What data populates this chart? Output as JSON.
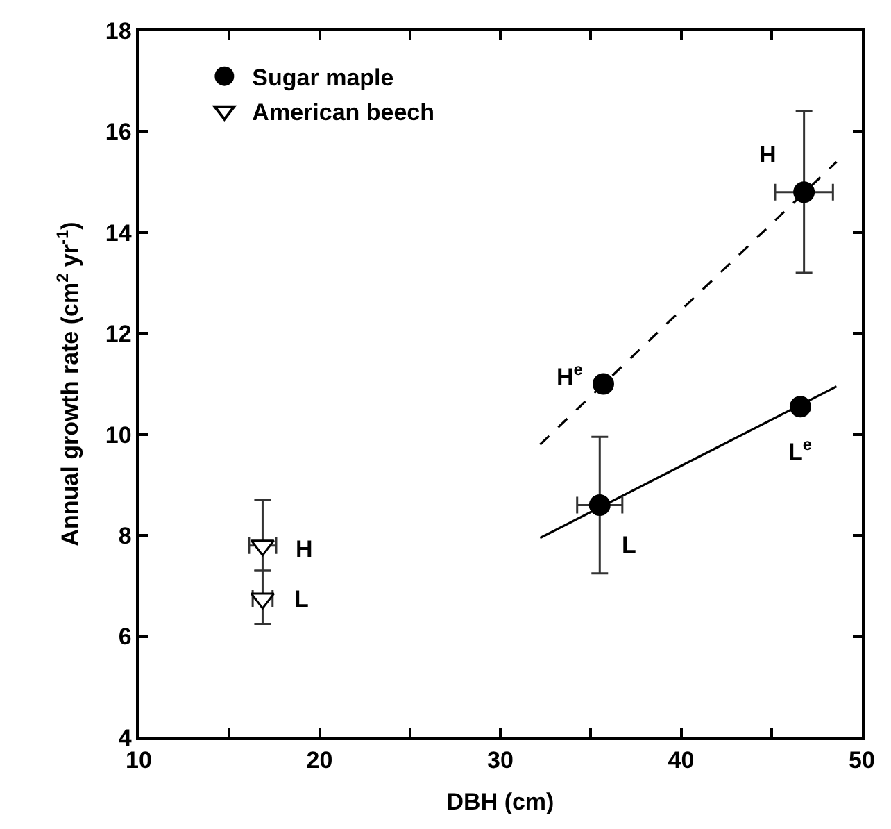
{
  "chart_data": {
    "type": "scatter",
    "xlabel": "DBH (cm)",
    "ylabel": "Annual growth rate (cm$^{2}$ yr$^{-1}$)",
    "xlim": [
      10,
      50
    ],
    "ylim": [
      4,
      18
    ],
    "xticks": [
      10,
      {
        "value": 15,
        "label": null
      },
      20,
      {
        "value": 25,
        "label": null
      },
      30,
      {
        "value": 35,
        "label": null
      },
      40,
      {
        "value": 45,
        "label": null
      },
      50
    ],
    "yticks": [
      4,
      6,
      8,
      10,
      12,
      14,
      16,
      18
    ],
    "legend": "top left",
    "series": [
      {
        "name": "Sugar maple",
        "marker": "circle",
        "color": "#000000",
        "x": [
          46.8,
          35.5,
          35.7,
          46.6
        ],
        "values": [
          14.8,
          8.6,
          11.0,
          10.55
        ],
        "errors": [
          [
            13.2,
            16.4
          ],
          [
            7.25,
            9.95
          ],
          null,
          null
        ],
        "xerrors": [
          1.6,
          1.25,
          null,
          null
        ]
      },
      {
        "name": "American beech",
        "marker": "triangle",
        "color": "#ffffff",
        "x": [
          16.85,
          16.85
        ],
        "values": [
          7.8,
          6.75
        ],
        "errors": [
          [
            7.3,
            8.7
          ],
          [
            6.25,
            7.3
          ]
        ],
        "xerrors": [
          0.75,
          0.55
        ]
      },
      {
        "type": "line",
        "line_style": "dashed",
        "color": "#000000",
        "x": [
          32.2,
          48.6
        ],
        "values": [
          9.8,
          15.4
        ]
      },
      {
        "type": "line",
        "line_style": "solid",
        "color": "#000000",
        "x": [
          32.2,
          48.6
        ],
        "values": [
          7.95,
          10.95
        ]
      }
    ],
    "annotations": [
      {
        "text": "H",
        "x": 46.8,
        "y": 14.8
      },
      {
        "text": "H$^{e}$",
        "x": 35.7,
        "y": 11.0
      },
      {
        "text": "L",
        "x": 35.5,
        "y": 8.6
      },
      {
        "text": "L$^{e}$",
        "x": 46.6,
        "y": 10.55
      },
      {
        "text": "H",
        "x": 16.85,
        "y": 7.8
      },
      {
        "text": "L",
        "x": 16.85,
        "y": 6.75
      }
    ]
  }
}
